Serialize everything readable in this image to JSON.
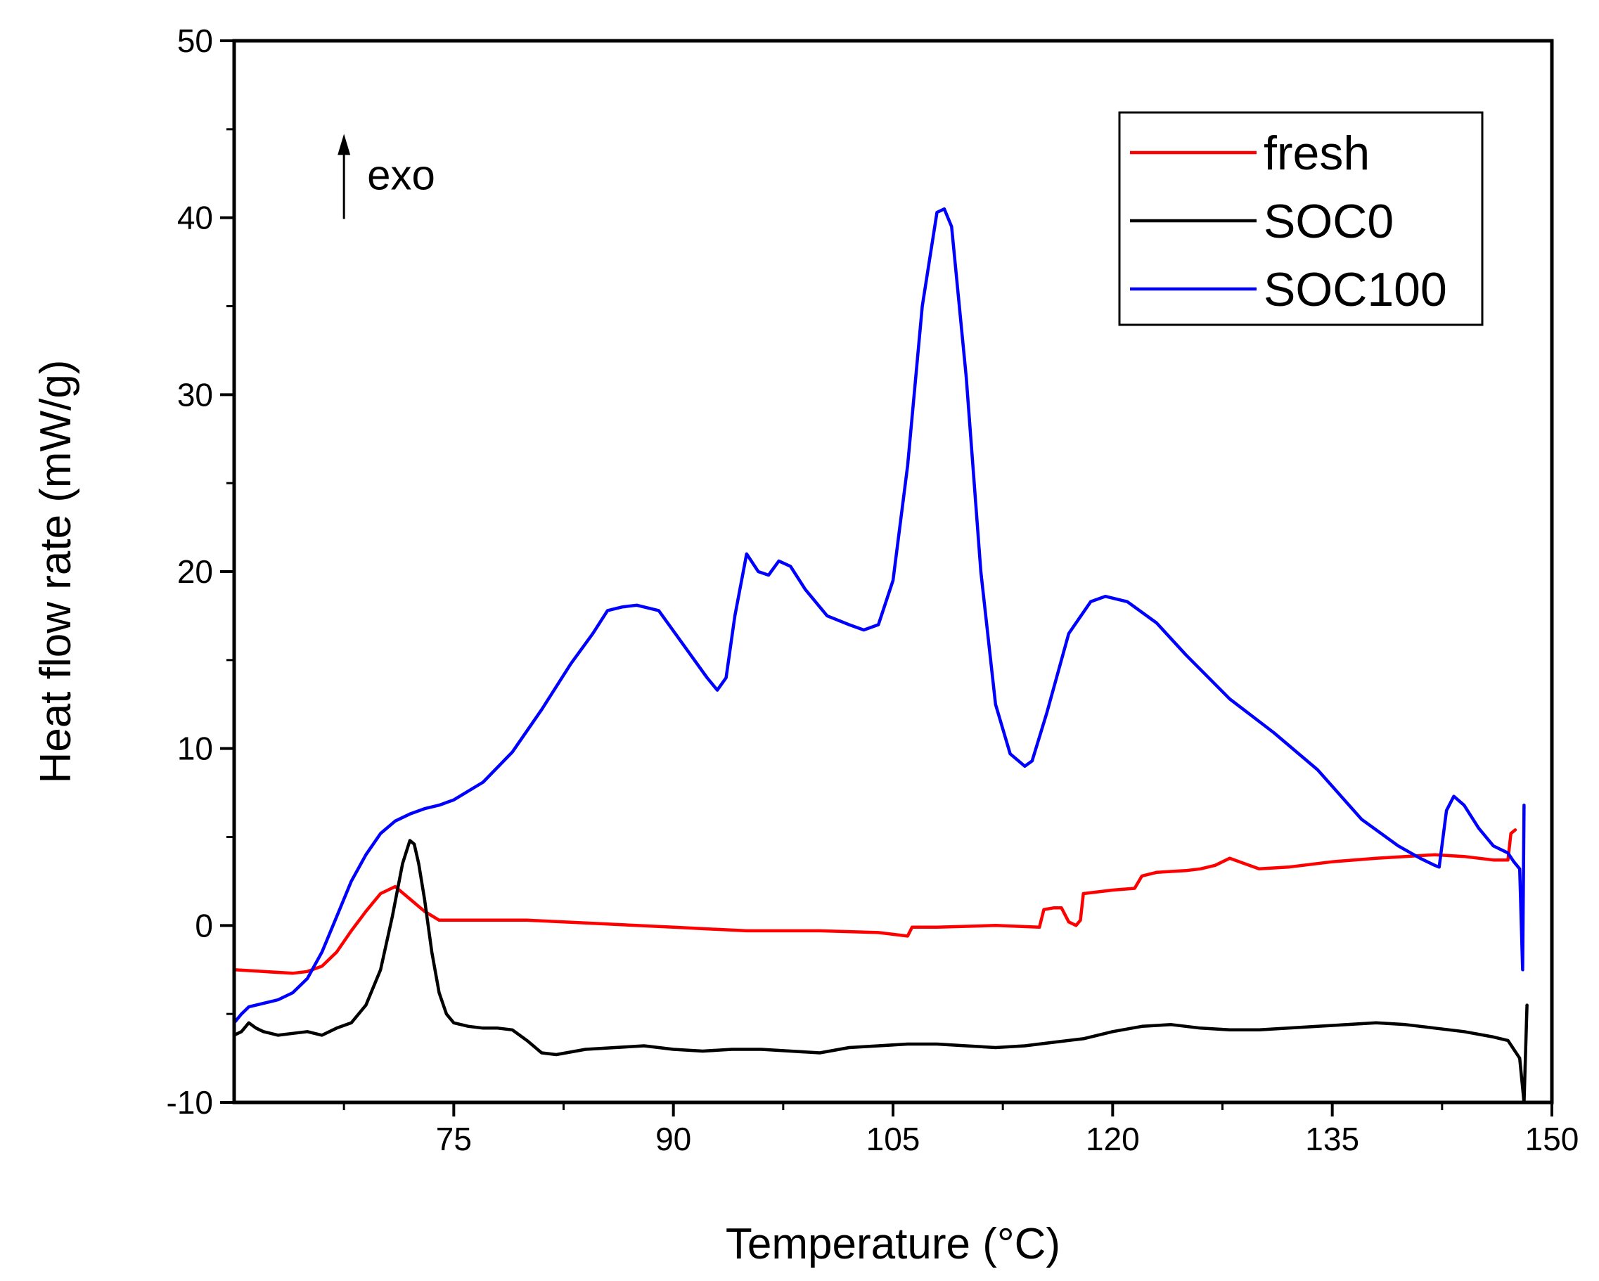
{
  "chart_data": {
    "type": "line",
    "title": "",
    "xlabel": "Temperature (°C)",
    "ylabel": "Heat flow rate (mW/g)",
    "xlim": [
      60,
      150
    ],
    "ylim": [
      -10,
      50
    ],
    "xticks": [
      75,
      90,
      105,
      120,
      135,
      150
    ],
    "xtick_labels": [
      "75",
      "90",
      "105",
      "120",
      "135",
      "150"
    ],
    "yticks": [
      -10,
      0,
      10,
      20,
      30,
      40,
      50
    ],
    "ytick_labels": [
      "-10",
      "0",
      "10",
      "20",
      "30",
      "40",
      "50"
    ],
    "grid": false,
    "legend_position": "top-right",
    "annotation": {
      "text": "exo",
      "arrow": "up",
      "at": [
        67.5,
        44.5
      ]
    },
    "series": [
      {
        "name": "fresh",
        "color": "#ff0000",
        "x": [
          60,
          62,
          64,
          65,
          66,
          67,
          68,
          69,
          70,
          71,
          72,
          73,
          74,
          75,
          80,
          85,
          90,
          95,
          100,
          104,
          106,
          106.3,
          108,
          112,
          115,
          115.3,
          116,
          116.5,
          117,
          117.5,
          117.8,
          118,
          120,
          121.5,
          122,
          123,
          125,
          126,
          127,
          128,
          130,
          132,
          135,
          138,
          140,
          142,
          144,
          146,
          147,
          147.2,
          147.5
        ],
        "values": [
          -2.5,
          -2.6,
          -2.7,
          -2.6,
          -2.3,
          -1.5,
          -0.3,
          0.8,
          1.8,
          2.2,
          1.5,
          0.8,
          0.3,
          0.3,
          0.3,
          0.1,
          -0.1,
          -0.3,
          -0.3,
          -0.4,
          -0.6,
          -0.1,
          -0.1,
          0.0,
          -0.1,
          0.9,
          1.0,
          1.0,
          0.2,
          0.0,
          0.3,
          1.8,
          2.0,
          2.1,
          2.8,
          3.0,
          3.1,
          3.2,
          3.4,
          3.8,
          3.2,
          3.3,
          3.6,
          3.8,
          3.9,
          4.0,
          3.9,
          3.7,
          3.7,
          5.2,
          5.4
        ]
      },
      {
        "name": "SOC0",
        "color": "#000000",
        "x": [
          60,
          60.5,
          61,
          61.5,
          62,
          63,
          64,
          65,
          66,
          67,
          68,
          69,
          70,
          70.8,
          71.5,
          72,
          72.3,
          72.6,
          73,
          73.5,
          74,
          74.5,
          75,
          76,
          77,
          78,
          79,
          80,
          81,
          82,
          84,
          86,
          88,
          90,
          92,
          94,
          96,
          98,
          100,
          102,
          104,
          106,
          108,
          110,
          112,
          114,
          116,
          118,
          120,
          122,
          124,
          126,
          128,
          130,
          132,
          134,
          136,
          138,
          140,
          142,
          144,
          146,
          147,
          147.8,
          148.1,
          148.3
        ],
        "values": [
          -6.2,
          -6.0,
          -5.5,
          -5.8,
          -6.0,
          -6.2,
          -6.1,
          -6.0,
          -6.2,
          -5.8,
          -5.5,
          -4.5,
          -2.5,
          0.5,
          3.5,
          4.8,
          4.6,
          3.5,
          1.5,
          -1.5,
          -3.8,
          -5.0,
          -5.5,
          -5.7,
          -5.8,
          -5.8,
          -5.9,
          -6.5,
          -7.2,
          -7.3,
          -7.0,
          -6.9,
          -6.8,
          -7.0,
          -7.1,
          -7.0,
          -7.0,
          -7.1,
          -7.2,
          -6.9,
          -6.8,
          -6.7,
          -6.7,
          -6.8,
          -6.9,
          -6.8,
          -6.6,
          -6.4,
          -6.0,
          -5.7,
          -5.6,
          -5.8,
          -5.9,
          -5.9,
          -5.8,
          -5.7,
          -5.6,
          -5.5,
          -5.6,
          -5.8,
          -6.0,
          -6.3,
          -6.5,
          -7.5,
          -10.0,
          -4.5
        ]
      },
      {
        "name": "SOC100",
        "color": "#0000ff",
        "x": [
          60,
          60.5,
          61,
          62,
          63,
          64,
          65,
          66,
          67,
          68,
          69,
          70,
          71,
          72,
          73,
          74,
          75,
          77,
          79,
          81,
          83,
          84.5,
          85.5,
          86.5,
          87.5,
          89,
          91,
          92.3,
          93,
          93.6,
          94.2,
          95,
          95.8,
          96.5,
          97.2,
          98,
          99,
          100.5,
          102,
          103,
          104,
          105,
          106,
          107,
          108,
          108.5,
          109,
          110,
          111,
          112,
          113,
          114,
          114.5,
          115.5,
          117,
          118.5,
          119.5,
          121,
          123,
          125,
          128,
          131,
          134,
          137,
          139.5,
          141,
          142,
          142.3,
          142.8,
          143.3,
          144,
          145,
          146,
          147,
          147.4,
          147.8,
          148.0,
          148.1
        ],
        "values": [
          -5.5,
          -5.0,
          -4.6,
          -4.4,
          -4.2,
          -3.8,
          -3.0,
          -1.5,
          0.5,
          2.5,
          4.0,
          5.2,
          5.9,
          6.3,
          6.6,
          6.8,
          7.1,
          8.1,
          9.8,
          12.2,
          14.8,
          16.5,
          17.8,
          18.0,
          18.1,
          17.8,
          15.5,
          14.0,
          13.3,
          14.0,
          17.5,
          21.0,
          20.0,
          19.8,
          20.6,
          20.3,
          19.0,
          17.5,
          17.0,
          16.7,
          17.0,
          19.5,
          26.0,
          35.0,
          40.3,
          40.5,
          39.5,
          31.0,
          20.0,
          12.5,
          9.7,
          9.0,
          9.3,
          12.0,
          16.5,
          18.3,
          18.6,
          18.3,
          17.1,
          15.3,
          12.8,
          10.9,
          8.8,
          6.0,
          4.5,
          3.8,
          3.4,
          3.3,
          6.5,
          7.3,
          6.8,
          5.5,
          4.5,
          4.1,
          3.6,
          3.2,
          -2.5,
          6.8
        ]
      }
    ]
  }
}
